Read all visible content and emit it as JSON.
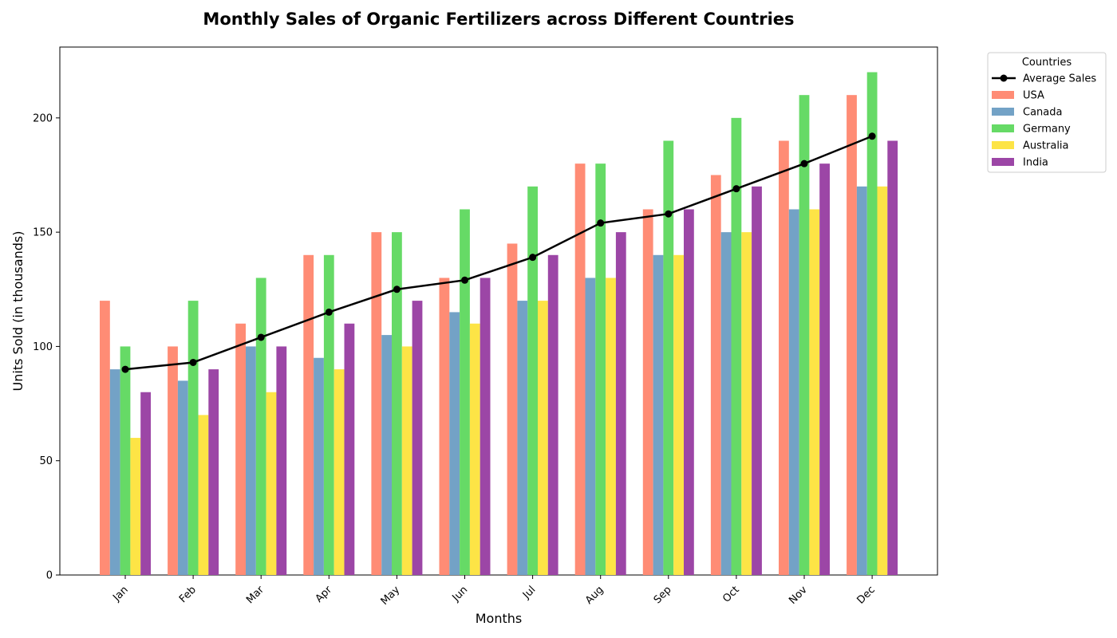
{
  "chart_data": {
    "type": "bar",
    "title": "Monthly Sales of Organic Fertilizers across Different Countries",
    "xlabel": "Months",
    "ylabel": "Units Sold (in thousands)",
    "ylim": [
      0,
      231
    ],
    "yticks": [
      0,
      50,
      100,
      150,
      200
    ],
    "grid": false,
    "legend_title": "Countries",
    "legend_position": "outside-top-right",
    "categories": [
      "Jan",
      "Feb",
      "Mar",
      "Apr",
      "May",
      "Jun",
      "Jul",
      "Aug",
      "Sep",
      "Oct",
      "Nov",
      "Dec"
    ],
    "series": [
      {
        "name": "USA",
        "color": "#FF8C75",
        "values": [
          120,
          100,
          110,
          140,
          150,
          130,
          145,
          180,
          160,
          175,
          190,
          210
        ]
      },
      {
        "name": "Canada",
        "color": "#73A2C6",
        "values": [
          90,
          85,
          100,
          95,
          105,
          115,
          120,
          130,
          140,
          150,
          160,
          170
        ]
      },
      {
        "name": "Germany",
        "color": "#66DA66",
        "values": [
          100,
          120,
          130,
          140,
          150,
          160,
          170,
          180,
          190,
          200,
          210,
          220
        ]
      },
      {
        "name": "Australia",
        "color": "#FDE446",
        "values": [
          60,
          70,
          80,
          90,
          100,
          110,
          120,
          130,
          140,
          150,
          160,
          170
        ]
      },
      {
        "name": "India",
        "color": "#9C46A6",
        "values": [
          80,
          90,
          100,
          110,
          120,
          130,
          140,
          150,
          160,
          170,
          180,
          190
        ]
      }
    ],
    "line_series": {
      "name": "Average Sales",
      "color": "#000000",
      "values": [
        90,
        93,
        104,
        115,
        125,
        129,
        139,
        154,
        158,
        169,
        180,
        192
      ]
    }
  }
}
